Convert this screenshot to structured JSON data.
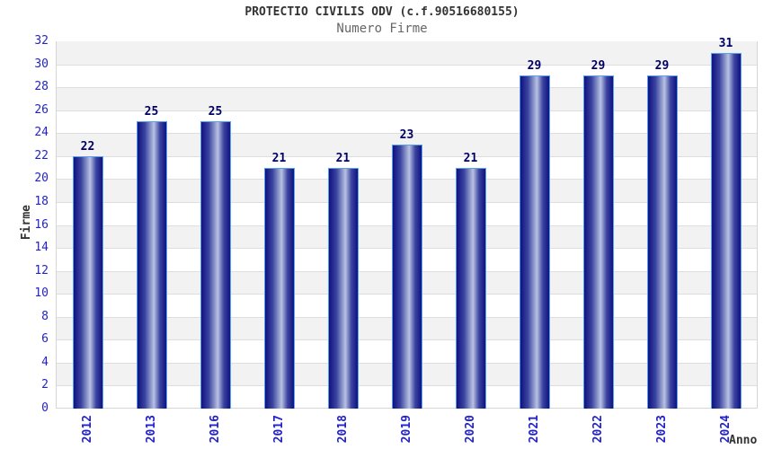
{
  "header": {
    "title": "PROTECTIO CIVILIS ODV (c.f.90516680155)",
    "subtitle": "Numero Firme"
  },
  "chart_data": {
    "type": "bar",
    "title": "PROTECTIO CIVILIS ODV (c.f.90516680155)",
    "subtitle": "Numero Firme",
    "categories": [
      "2012",
      "2013",
      "2016",
      "2017",
      "2018",
      "2019",
      "2020",
      "2021",
      "2022",
      "2023",
      "2024"
    ],
    "values": [
      22,
      25,
      25,
      21,
      21,
      23,
      21,
      29,
      29,
      29,
      31
    ],
    "xlabel": "Anno",
    "ylabel": "Firme",
    "ylim": [
      0,
      32
    ],
    "ytick_step": 2,
    "yticks": [
      0,
      2,
      4,
      6,
      8,
      10,
      12,
      14,
      16,
      18,
      20,
      22,
      24,
      26,
      28,
      30,
      32
    ],
    "grid": true,
    "legend": false,
    "bar_labels_shown": true,
    "x_tick_rotation_degrees": 90
  },
  "colors": {
    "title_c": "#333333",
    "subtitle_c": "#666666",
    "tick_blue": "#2222cc",
    "value_navy": "#000066",
    "axis_label_c": "#333333",
    "band_gray": "#f2f2f2",
    "grid_line": "#dedede",
    "plot_border_c": "#d6d6d6",
    "bar_dark": "#101280",
    "bar_mid": "#3a44a0",
    "bar_light": "#9aa5d2",
    "bar_light2": "#b9c2e2",
    "bar_border": "#57a0f0"
  }
}
